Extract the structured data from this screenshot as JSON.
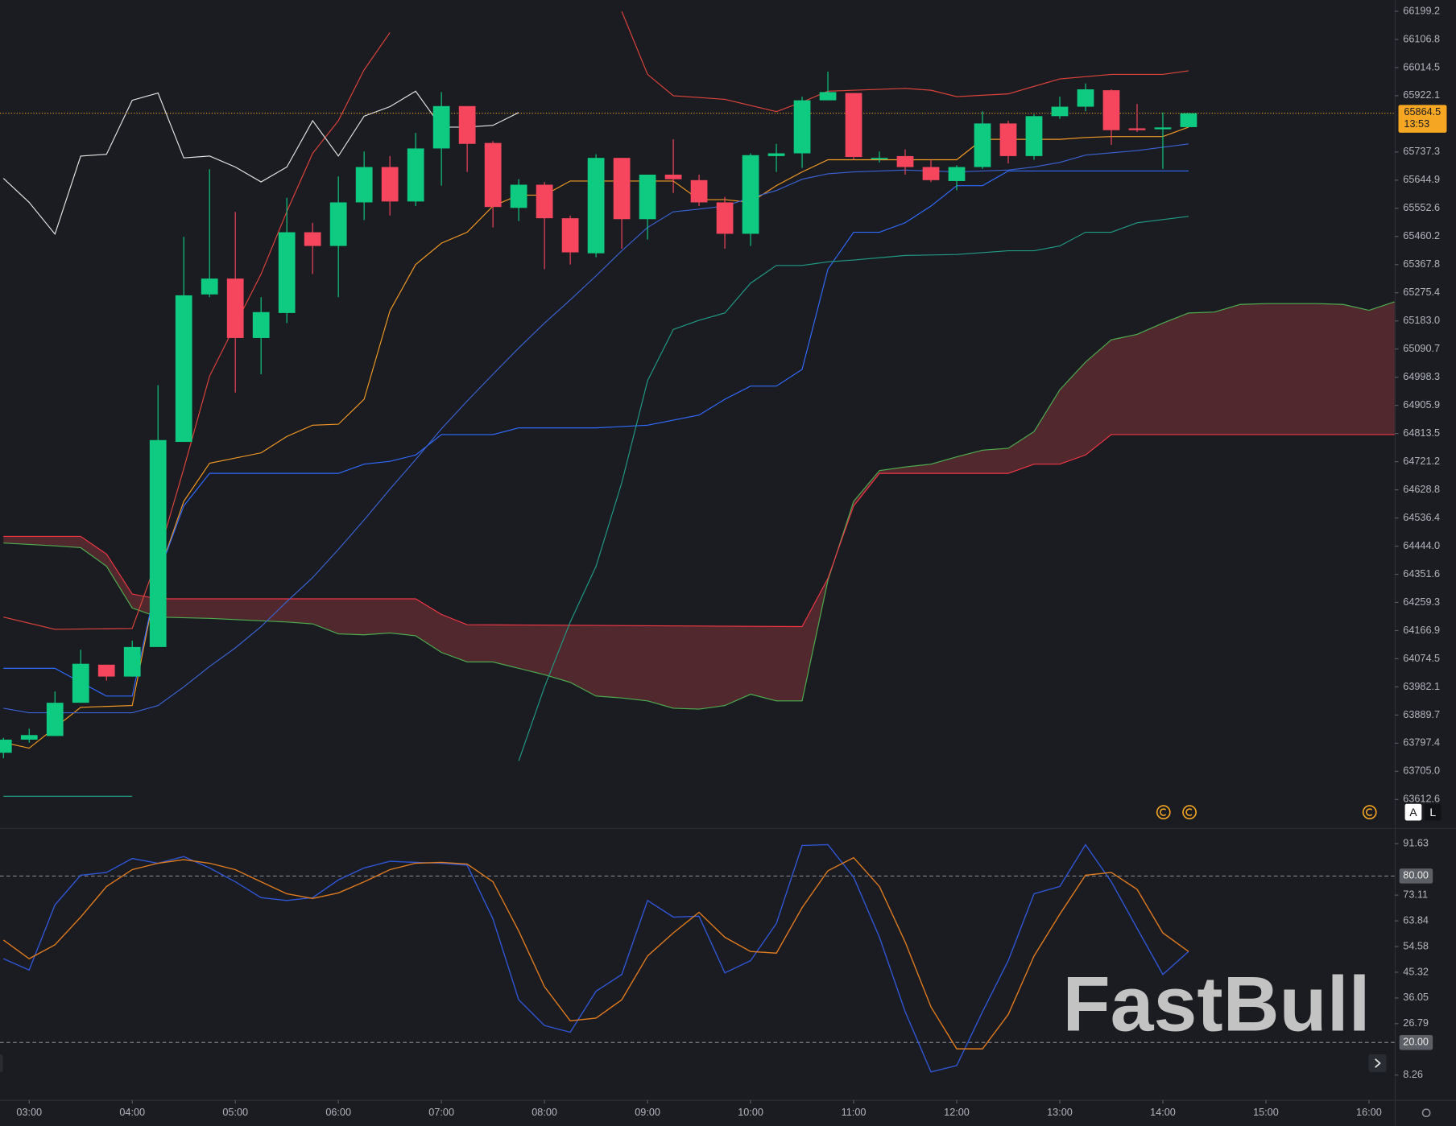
{
  "chart_data": [
    {
      "type": "candlestick",
      "x": [
        "02:45",
        "03:00",
        "03:15",
        "03:30",
        "03:45",
        "04:00",
        "04:15",
        "04:30",
        "04:45",
        "05:00",
        "05:15",
        "05:30",
        "05:45",
        "06:00",
        "06:15",
        "06:30",
        "06:45",
        "07:00",
        "07:15",
        "07:30",
        "07:45",
        "08:00",
        "08:15",
        "08:30",
        "08:45",
        "09:00",
        "09:15",
        "09:30",
        "09:45",
        "10:00",
        "10:15",
        "10:30",
        "10:45",
        "11:00",
        "11:15",
        "11:30",
        "11:45",
        "12:00",
        "12:15",
        "12:30",
        "12:45",
        "13:00",
        "13:15",
        "13:30",
        "13:45",
        "14:00",
        "14:15"
      ],
      "open": [
        63766,
        63809,
        63821,
        63930,
        64055,
        64016,
        64113,
        64786,
        65270,
        65322,
        65127,
        65209,
        65474,
        65429,
        65572,
        65688,
        65575,
        65749,
        65888,
        65767,
        65554,
        65630,
        65520,
        65405,
        65718,
        65517,
        65663,
        65645,
        65572,
        65469,
        65724,
        65733,
        65907,
        65931,
        65715,
        65724,
        65688,
        65642,
        65688,
        65831,
        65724,
        65855,
        65886,
        65940,
        65815,
        65812,
        65819
      ],
      "high": [
        63815,
        63845,
        63967,
        64104,
        64055,
        64134,
        64972,
        65459,
        65681,
        65541,
        65261,
        65587,
        65505,
        65657,
        65739,
        65724,
        65800,
        65934,
        65888,
        65773,
        65648,
        65639,
        65529,
        65730,
        65718,
        65663,
        65779,
        65663,
        65590,
        65733,
        65764,
        65919,
        66001,
        65931,
        65739,
        65746,
        65712,
        65694,
        65871,
        65840,
        65861,
        65919,
        65962,
        65943,
        65895,
        65867,
        65864.5
      ],
      "low": [
        63748,
        63799,
        63821,
        63930,
        64003,
        64016,
        64113,
        64786,
        65261,
        64948,
        65008,
        65176,
        65337,
        65261,
        65514,
        65529,
        65560,
        65627,
        65672,
        65490,
        65511,
        65353,
        65368,
        65392,
        65420,
        65450,
        65603,
        65560,
        65420,
        65429,
        65672,
        65685,
        65907,
        65712,
        65703,
        65663,
        65639,
        65612,
        65682,
        65700,
        65712,
        65846,
        65871,
        65761,
        65803,
        65682,
        65819
      ],
      "close": [
        63809,
        63824,
        63930,
        64058,
        64016,
        64113,
        64792,
        65267,
        65322,
        65127,
        65212,
        65474,
        65429,
        65572,
        65688,
        65575,
        65749,
        65888,
        65764,
        65557,
        65630,
        65520,
        65408,
        65718,
        65517,
        65663,
        65648,
        65572,
        65469,
        65727,
        65733,
        65907,
        65934,
        65721,
        65718,
        65688,
        65645,
        65688,
        65831,
        65724,
        65855,
        65886,
        65943,
        65809,
        65809,
        65818,
        65864.5
      ],
      "up_color": "#0ecb81",
      "down_color": "#f6465d",
      "xlim": [
        "02:43",
        "16:15"
      ],
      "ylim": [
        63519.2,
        66235.7
      ],
      "yticks": [
        66199.2,
        66106.8,
        66014.5,
        65922.1,
        65737.3,
        65644.9,
        65552.6,
        65460.2,
        65367.8,
        65275.4,
        {
          "value": 65183,
          "label": "65183.0"
        },
        65090.7,
        64998.3,
        64905.9,
        64813.5,
        64721.2,
        64628.8,
        64536.4,
        {
          "value": 64444,
          "label": "64444.0"
        },
        64351.6,
        64259.3,
        64166.9,
        64074.5,
        63982.1,
        63889.7,
        63797.4,
        {
          "value": 63705,
          "label": "63705.0"
        },
        63612.6
      ],
      "last_price": 65864.5,
      "last_price_color": "#f5a623",
      "countdown": "13:53",
      "cloud": {
        "fill": "#5a2a2f",
        "span_a": {
          "color": "#4caf50",
          "x": [
            "02:45",
            "03:15",
            "03:30",
            "03:45",
            "04:00",
            "04:15",
            "04:45",
            "05:30",
            "05:45",
            "06:00",
            "06:15",
            "06:30",
            "06:45",
            "07:00",
            "07:15",
            "07:30",
            "07:45",
            "08:00",
            "08:15",
            "08:30",
            "08:45",
            "09:00",
            "09:15",
            "09:30",
            "09:45",
            "10:00",
            "10:15",
            "10:30",
            "10:45",
            "11:00",
            "11:15",
            "11:30",
            "11:45",
            "12:00",
            "12:15",
            "12:30",
            "12:45",
            "13:00",
            "13:15",
            "13:30",
            "13:45",
            "14:00",
            "14:15",
            "14:30",
            "14:45",
            "15:00",
            "15:30",
            "15:45",
            "16:00",
            "16:15"
          ],
          "values": [
            64454,
            64445,
            64439,
            64378,
            64241,
            64211,
            64207,
            64195,
            64189,
            64156,
            64153,
            64159,
            64150,
            64095,
            64064,
            64064,
            64043,
            64022,
            63997,
            63952,
            63946,
            63936,
            63912,
            63909,
            63921,
            63958,
            63936,
            63936,
            64332,
            64591,
            64692,
            64704,
            64713,
            64737,
            64759,
            64765,
            64820,
            64957,
            65048,
            65121,
            65139,
            65176,
            65209,
            65212,
            65237,
            65240,
            65240,
            65237,
            65218,
            65246
          ]
        },
        "span_b": {
          "color": "#f23645",
          "x": [
            "02:45",
            "03:30",
            "03:45",
            "04:00",
            "04:15",
            "06:45",
            "07:00",
            "07:15",
            "10:30",
            "10:45",
            "11:00",
            "11:15",
            "12:30",
            "12:45",
            "13:00",
            "13:15",
            "13:30",
            "16:15"
          ],
          "values": [
            64476,
            64476,
            64418,
            64287,
            64271,
            64271,
            64220,
            64186,
            64180,
            64338,
            64576,
            64683,
            64683,
            64713,
            64713,
            64743,
            64810,
            64810
          ]
        }
      },
      "overlays": [
        {
          "color": "#e0443a",
          "x": [
            "02:45",
            "03:15",
            "04:00",
            "04:15",
            "04:30",
            "04:45",
            "05:00",
            "05:15",
            "05:30",
            "05:45",
            "06:00",
            "06:15",
            "06:30",
            "07:30",
            "08:45",
            "09:00",
            "09:15",
            "09:45",
            "10:15",
            "10:30",
            "10:45",
            "11:30",
            "11:45",
            "12:00",
            "12:30",
            "13:00",
            "13:30",
            "14:00",
            "14:15"
          ],
          "values": [
            64211,
            64171,
            64174,
            64409,
            64698,
            65002,
            65170,
            65337,
            65542,
            65733,
            65840,
            66007,
            66129,
            null,
            66199,
            65992,
            65922,
            65910,
            65870,
            65901,
            65937,
            65946,
            65940,
            65919,
            65928,
            65977,
            65992,
            65992,
            66004
          ]
        },
        {
          "color": "#e6e6e6",
          "x": [
            "02:45",
            "03:00",
            "03:15",
            "03:30",
            "03:45",
            "04:00",
            "04:15",
            "04:30",
            "04:45",
            "05:00",
            "05:15",
            "05:30",
            "05:45",
            "06:00",
            "06:15",
            "06:30",
            "06:45",
            "07:00",
            "07:15",
            "07:30",
            "07:45"
          ],
          "values": [
            65651,
            65572,
            65468,
            65724,
            65730,
            65907,
            65931,
            65718,
            65724,
            65688,
            65639,
            65688,
            65840,
            65724,
            65855,
            65886,
            65937,
            65819,
            65819,
            65825,
            65867
          ]
        },
        {
          "color": "#f59a23",
          "x": [
            "02:45",
            "03:00",
            "03:30",
            "04:00",
            "04:15",
            "04:30",
            "04:45",
            "05:15",
            "05:30",
            "05:45",
            "06:00",
            "06:15",
            "06:30",
            "06:45",
            "07:00",
            "07:15",
            "07:30",
            "07:45",
            "08:00",
            "08:15",
            "09:15",
            "09:30",
            "09:45",
            "10:00",
            "10:15",
            "10:30",
            "10:45",
            "12:00",
            "12:15",
            "13:00",
            "13:15",
            "13:30",
            "14:00",
            "14:15"
          ],
          "values": [
            63800,
            63781,
            63915,
            63921,
            64348,
            64591,
            64716,
            64750,
            64804,
            64841,
            64844,
            64926,
            65216,
            65368,
            65438,
            65474,
            65560,
            65596,
            65596,
            65642,
            65642,
            65581,
            65581,
            65572,
            65627,
            65672,
            65712,
            65712,
            65779,
            65779,
            65785,
            65788,
            65788,
            65819
          ]
        },
        {
          "color": "#2f6bff",
          "x": [
            "02:45",
            "03:15",
            "03:30",
            "03:45",
            "04:00",
            "04:15",
            "04:30",
            "04:45",
            "06:00",
            "06:15",
            "06:30",
            "06:45",
            "07:00",
            "07:30",
            "07:45",
            "08:30",
            "09:00",
            "09:30",
            "09:45",
            "10:00",
            "10:15",
            "10:30",
            "10:45",
            "11:00",
            "11:15",
            "11:30",
            "11:45",
            "12:00",
            "12:15",
            "12:30",
            "14:15"
          ],
          "values": [
            64043,
            64043,
            63997,
            63952,
            63952,
            64348,
            64576,
            64683,
            64683,
            64713,
            64722,
            64743,
            64810,
            64810,
            64832,
            64832,
            64841,
            64874,
            64926,
            64969,
            64969,
            65024,
            65353,
            65474,
            65474,
            65505,
            65560,
            65627,
            65627,
            65675,
            65675
          ]
        },
        {
          "color": "#3a63d6",
          "x": [
            "02:45",
            "03:00",
            "04:00",
            "04:15",
            "04:30",
            "04:45",
            "05:00",
            "05:15",
            "05:30",
            "05:45",
            "06:00",
            "06:15",
            "06:30",
            "06:45",
            "07:00",
            "07:15",
            "07:30",
            "07:45",
            "08:00",
            "08:15",
            "08:30",
            "08:45",
            "09:00",
            "09:15",
            "09:30",
            "09:45",
            "10:00",
            "10:15",
            "10:30",
            "10:45",
            "11:00",
            "11:30",
            "12:00",
            "12:30",
            "12:45",
            "13:00",
            "13:15",
            "13:45",
            "14:15"
          ],
          "values": [
            63912,
            63897,
            63897,
            63921,
            63982,
            64049,
            64110,
            64180,
            64262,
            64341,
            64433,
            64530,
            64631,
            64728,
            64829,
            64920,
            65008,
            65094,
            65176,
            65252,
            65331,
            65413,
            65490,
            65541,
            65550,
            65560,
            65587,
            65611,
            65648,
            65666,
            65672,
            65678,
            65672,
            65678,
            65688,
            65703,
            65727,
            65742,
            65764
          ]
        },
        {
          "color": "#1f9c84",
          "x": [
            "02:45",
            "04:00",
            "06:00",
            "07:45",
            "08:00",
            "08:15",
            "08:30",
            "08:45",
            "09:00",
            "09:15",
            "09:30",
            "09:45",
            "10:00",
            "10:15",
            "10:30",
            "10:45",
            "11:00",
            "11:30",
            "12:00",
            "12:30",
            "12:45",
            "13:00",
            "13:15",
            "13:30",
            "13:45",
            "14:15"
          ],
          "values": [
            63623,
            63623,
            null,
            63739,
            63982,
            64195,
            64378,
            64652,
            64987,
            65155,
            65185,
            65209,
            65307,
            65365,
            65365,
            65377,
            65383,
            65398,
            65401,
            65413,
            65413,
            65429,
            65474,
            65474,
            65505,
            65526
          ]
        }
      ]
    },
    {
      "type": "line",
      "x": [
        "02:45",
        "03:00",
        "03:15",
        "03:30",
        "03:45",
        "04:00",
        "04:15",
        "04:30",
        "04:45",
        "05:00",
        "05:15",
        "05:30",
        "05:45",
        "06:00",
        "06:15",
        "06:30",
        "06:45",
        "07:00",
        "07:15",
        "07:30",
        "07:45",
        "08:00",
        "08:15",
        "08:30",
        "08:45",
        "09:00",
        "09:15",
        "09:30",
        "09:45",
        "10:00",
        "10:15",
        "10:30",
        "10:45",
        "11:00",
        "11:15",
        "11:30",
        "11:45",
        "12:00",
        "12:15",
        "12:30",
        "12:45",
        "13:00",
        "13:15",
        "13:30",
        "13:45",
        "14:00",
        "14:15"
      ],
      "series": [
        {
          "color": "#2f56d6",
          "values": [
            50.2,
            46.1,
            69.6,
            80.3,
            81.3,
            86.3,
            84.6,
            87.0,
            82.9,
            77.9,
            72.2,
            71.2,
            72.2,
            78.6,
            82.9,
            85.3,
            84.9,
            84.6,
            83.9,
            64.5,
            35.4,
            26.1,
            23.7,
            38.5,
            44.5,
            71.2,
            65.2,
            65.5,
            45.1,
            49.5,
            62.9,
            91.0,
            91.3,
            79.6,
            57.9,
            31.1,
            9.4,
            11.7,
            31.1,
            49.5,
            73.6,
            76.2,
            91.3,
            77.9,
            61.2,
            44.5,
            52.8
          ]
        },
        {
          "color": "#e07b1f",
          "values": [
            56.9,
            50.2,
            55.2,
            65.2,
            76.2,
            82.3,
            84.6,
            85.9,
            84.6,
            82.3,
            77.9,
            73.6,
            71.9,
            73.9,
            77.9,
            82.3,
            84.6,
            84.9,
            84.3,
            77.9,
            60.2,
            40.1,
            27.8,
            28.8,
            35.4,
            51.2,
            59.5,
            66.9,
            57.9,
            52.8,
            52.2,
            68.6,
            81.9,
            86.6,
            76.2,
            56.2,
            32.8,
            17.7,
            17.7,
            30.1,
            51.2,
            66.2,
            80.3,
            81.3,
            75.2,
            59.5,
            52.8
          ]
        }
      ],
      "xlim": [
        "02:43",
        "16:15"
      ],
      "ylim": [
        -0.68,
        96.98
      ],
      "yticks": [
        91.63,
        73.11,
        63.84,
        54.58,
        45.32,
        36.05,
        26.79,
        8.26
      ],
      "levels": [
        {
          "value": 80,
          "label": "80.00"
        },
        {
          "value": 20,
          "label": "20.00"
        }
      ],
      "xticks": [
        "03:00",
        "04:00",
        "05:00",
        "06:00",
        "07:00",
        "08:00",
        "09:00",
        "10:00",
        "11:00",
        "12:00",
        "13:00",
        "14:00",
        "15:00",
        "16:00"
      ]
    }
  ],
  "watermark": "FastBull",
  "buttons": [
    "A",
    "L"
  ]
}
